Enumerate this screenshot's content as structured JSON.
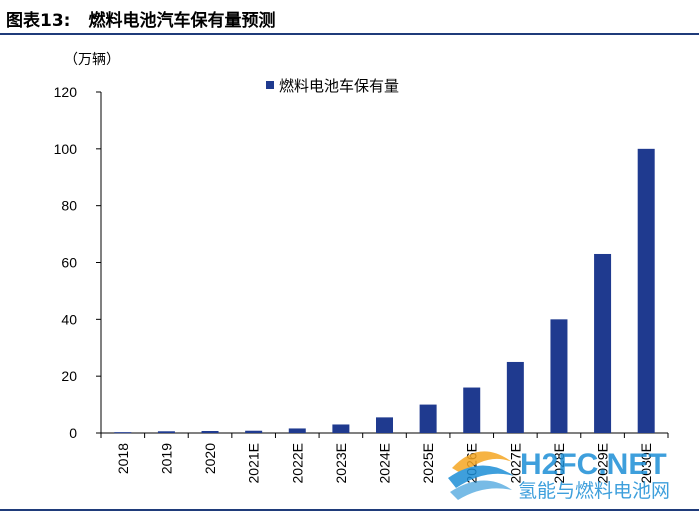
{
  "figure": {
    "label": "图表13:",
    "title": "燃料电池汽车保有量预测",
    "unit": "（万辆）"
  },
  "chart_data": {
    "type": "bar",
    "categories": [
      "2018",
      "2019",
      "2020",
      "2021E",
      "2022E",
      "2023E",
      "2024E",
      "2025E",
      "2026E",
      "2027E",
      "2028E",
      "2029E",
      "2030E"
    ],
    "series": [
      {
        "name": "燃料电池车保有量",
        "values": [
          0.3,
          0.6,
          0.7,
          0.8,
          1.6,
          3,
          5.5,
          10,
          16,
          25,
          40,
          63,
          100
        ]
      }
    ],
    "ylim": [
      0,
      120
    ],
    "yticks": [
      0,
      20,
      40,
      60,
      80,
      100,
      120
    ],
    "legend_position": "top",
    "bar_color": "#1f3a8f",
    "grid": false
  },
  "watermark": {
    "brand": "H2FC.NET",
    "name": "氢能与燃料电池网"
  }
}
